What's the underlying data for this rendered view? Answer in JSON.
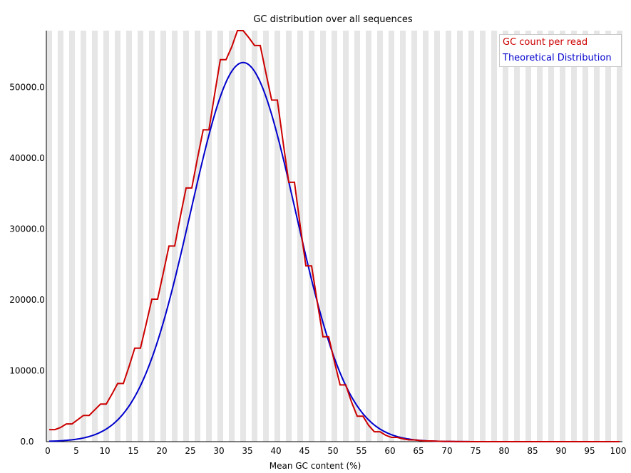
{
  "chart_data": {
    "type": "line",
    "title": "GC distribution over all sequences",
    "xlabel": "Mean GC content (%)",
    "ylabel": "",
    "xlim": [
      0,
      101
    ],
    "ylim": [
      0,
      58000
    ],
    "x_ticks": [
      "0",
      "5",
      "10",
      "15",
      "20",
      "25",
      "30",
      "35",
      "40",
      "45",
      "50",
      "55",
      "60",
      "65",
      "70",
      "75",
      "80",
      "85",
      "90",
      "95",
      "100"
    ],
    "y_ticks": [
      "0.0",
      "10000.0",
      "20000.0",
      "30000.0",
      "40000.0",
      "50000.0"
    ],
    "y_tick_values": [
      0,
      10000,
      20000,
      30000,
      40000,
      50000
    ],
    "legend_position": "top-right",
    "grid": "alternating vertical bands",
    "series": [
      {
        "name": "GC count per read",
        "color": "#cc0000",
        "style": "step",
        "x": [
          0,
          1,
          2,
          3,
          4,
          5,
          6,
          7,
          8,
          9,
          10,
          11,
          12,
          13,
          14,
          15,
          16,
          17,
          18,
          19,
          20,
          21,
          22,
          23,
          24,
          25,
          26,
          27,
          28,
          29,
          30,
          31,
          32,
          33,
          34,
          35,
          36,
          37,
          38,
          39,
          40,
          41,
          42,
          43,
          44,
          45,
          46,
          47,
          48,
          49,
          50,
          51,
          52,
          53,
          54,
          55,
          56,
          57,
          58,
          59,
          60,
          61,
          62,
          63,
          64,
          65,
          66,
          67,
          68,
          69,
          70,
          71,
          72,
          73,
          74,
          75,
          76,
          77,
          78,
          79,
          80,
          81,
          82,
          83,
          84,
          85,
          86,
          87,
          88,
          89,
          90,
          91,
          92,
          93,
          94,
          95,
          96,
          97,
          98,
          99,
          100
        ],
        "values": [
          1700,
          1700,
          2000,
          2500,
          2500,
          3100,
          3700,
          3700,
          4500,
          5300,
          5300,
          6700,
          8200,
          8200,
          10600,
          13200,
          13200,
          16600,
          20100,
          20100,
          23800,
          27600,
          27600,
          31800,
          35800,
          35800,
          40000,
          44000,
          44000,
          49000,
          53900,
          53900,
          55700,
          58000,
          58000,
          57000,
          55900,
          55900,
          52000,
          48200,
          48200,
          42300,
          36600,
          36600,
          30500,
          24800,
          24800,
          19700,
          14800,
          14800,
          11300,
          8000,
          8000,
          5600,
          3600,
          3600,
          2300,
          1400,
          1400,
          900,
          600,
          600,
          400,
          250,
          250,
          150,
          100,
          100,
          60,
          40,
          40,
          20,
          10,
          10,
          0,
          0,
          0,
          0,
          0,
          0,
          0,
          0,
          0,
          0,
          0,
          0,
          0,
          0,
          0,
          0,
          0,
          0,
          0,
          0,
          0,
          0,
          0,
          0,
          0,
          0,
          0
        ]
      },
      {
        "name": "Theoretical Distribution",
        "color": "#0000cc",
        "style": "smooth",
        "mean": 34,
        "sd": 9.2,
        "peak": 53500,
        "x_range": [
          0,
          100
        ]
      }
    ]
  }
}
